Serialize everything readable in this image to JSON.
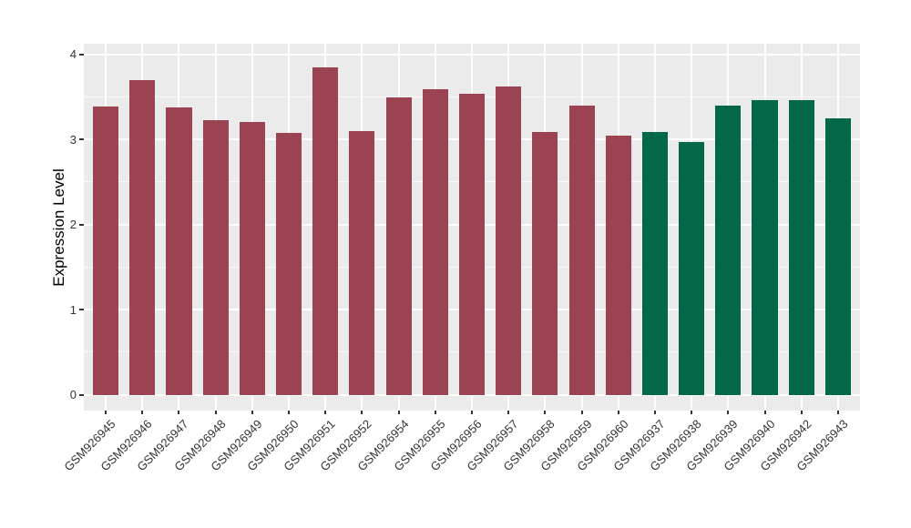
{
  "chart_data": {
    "type": "bar",
    "title": "",
    "xlabel": "",
    "ylabel": "Expression Level",
    "categories": [
      "GSM926945",
      "GSM926946",
      "GSM926947",
      "GSM926948",
      "GSM926949",
      "GSM926950",
      "GSM926951",
      "GSM926952",
      "GSM926954",
      "GSM926955",
      "GSM926956",
      "GSM926957",
      "GSM926958",
      "GSM926959",
      "GSM926960",
      "GSM926937",
      "GSM926938",
      "GSM926939",
      "GSM926940",
      "GSM926942",
      "GSM926943"
    ],
    "values": [
      3.38,
      3.7,
      3.37,
      3.22,
      3.2,
      3.07,
      3.84,
      3.1,
      3.49,
      3.59,
      3.53,
      3.62,
      3.09,
      3.4,
      3.04,
      3.09,
      2.97,
      3.4,
      3.46,
      3.46,
      3.25
    ],
    "groups": [
      "red",
      "red",
      "red",
      "red",
      "red",
      "red",
      "red",
      "red",
      "red",
      "red",
      "red",
      "red",
      "red",
      "red",
      "red",
      "green",
      "green",
      "green",
      "green",
      "green",
      "green"
    ],
    "group_colors": {
      "red": "#9B4352",
      "green": "#03674A"
    },
    "yticks": [
      0,
      1,
      2,
      3,
      4
    ],
    "minor_step": 0.5,
    "ylim": [
      0,
      4.12
    ],
    "grid": "on",
    "legend": "none",
    "panel_bg": "#EBEBEB",
    "grid_color": "#FFFFFF",
    "tick_color": "#333333"
  }
}
